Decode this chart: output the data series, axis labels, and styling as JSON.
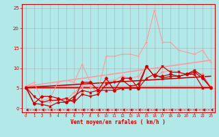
{
  "bg_color": "#b3e8e8",
  "grid_color": "#999999",
  "xlabel": "Vent moyen/en rafales ( km/h )",
  "xlabel_color": "#cc0000",
  "tick_color": "#cc0000",
  "xlim": [
    -0.5,
    23.5
  ],
  "ylim": [
    -1,
    26
  ],
  "yticks": [
    0,
    5,
    10,
    15,
    20,
    25
  ],
  "xticks": [
    0,
    1,
    2,
    3,
    4,
    5,
    6,
    7,
    8,
    9,
    10,
    11,
    12,
    13,
    14,
    15,
    16,
    17,
    18,
    19,
    20,
    21,
    22,
    23
  ],
  "lines": [
    {
      "comment": "light pink + line (upper envelope)",
      "x": [
        0,
        1,
        2,
        3,
        4,
        5,
        6,
        7,
        8,
        9,
        10,
        11,
        12,
        13,
        14,
        15,
        16,
        17,
        18,
        19,
        20,
        21,
        22,
        23
      ],
      "y": [
        5.5,
        6.5,
        2.0,
        2.5,
        6.5,
        7.0,
        6.5,
        11.0,
        6.5,
        4.5,
        13.0,
        13.0,
        13.5,
        13.5,
        13.0,
        16.5,
        24.5,
        16.5,
        16.5,
        14.5,
        14.0,
        13.5,
        14.5,
        11.5
      ],
      "color": "#ff9999",
      "marker": "+",
      "markersize": 3.5,
      "linewidth": 0.8,
      "linestyle": "-",
      "zorder": 3
    },
    {
      "comment": "light pink line (lower scatter)",
      "x": [
        0,
        1,
        2,
        3,
        4,
        5,
        6,
        7,
        8,
        9,
        10,
        11,
        12,
        13,
        14,
        15,
        16,
        17,
        18,
        19,
        20,
        21,
        22,
        23
      ],
      "y": [
        5.5,
        3.0,
        1.5,
        1.5,
        2.5,
        2.0,
        4.0,
        5.5,
        5.5,
        4.0,
        7.0,
        7.0,
        8.0,
        7.5,
        8.0,
        10.5,
        8.0,
        9.0,
        9.5,
        9.0,
        8.5,
        9.0,
        8.5,
        5.5
      ],
      "color": "#ff9999",
      "marker": "D",
      "markersize": 2.0,
      "linewidth": 0.8,
      "linestyle": "-",
      "zorder": 3
    },
    {
      "comment": "light pink diagonal line upper",
      "x": [
        0,
        23
      ],
      "y": [
        5.5,
        12.0
      ],
      "color": "#ff9999",
      "marker": null,
      "markersize": 0,
      "linewidth": 1.2,
      "linestyle": "-",
      "zorder": 2
    },
    {
      "comment": "light pink diagonal line lower flat",
      "x": [
        0,
        23
      ],
      "y": [
        5.5,
        5.5
      ],
      "color": "#ff9999",
      "marker": null,
      "markersize": 0,
      "linewidth": 1.2,
      "linestyle": "-",
      "zorder": 2
    },
    {
      "comment": "dark red upper scatter line",
      "x": [
        0,
        1,
        2,
        3,
        4,
        5,
        6,
        7,
        8,
        9,
        10,
        11,
        12,
        13,
        14,
        15,
        16,
        17,
        18,
        19,
        20,
        21,
        22,
        23
      ],
      "y": [
        5.2,
        1.2,
        3.0,
        3.0,
        2.5,
        1.5,
        2.2,
        6.5,
        6.5,
        4.5,
        7.5,
        4.5,
        7.5,
        7.5,
        5.0,
        10.5,
        8.0,
        8.0,
        8.5,
        8.0,
        8.5,
        9.0,
        7.5,
        5.2
      ],
      "color": "#cc0000",
      "marker": "D",
      "markersize": 2.5,
      "linewidth": 0.9,
      "linestyle": "-",
      "zorder": 4
    },
    {
      "comment": "dark red lower scatter line",
      "x": [
        0,
        1,
        2,
        3,
        4,
        5,
        6,
        7,
        8,
        9,
        10,
        11,
        12,
        13,
        14,
        15,
        16,
        17,
        18,
        19,
        20,
        21,
        22,
        23
      ],
      "y": [
        5.2,
        1.2,
        1.0,
        0.5,
        1.5,
        1.5,
        3.0,
        4.5,
        4.0,
        4.5,
        4.5,
        4.5,
        5.0,
        5.0,
        5.0,
        7.5,
        8.5,
        7.5,
        8.0,
        8.0,
        8.5,
        8.5,
        5.2,
        5.2
      ],
      "color": "#cc0000",
      "marker": "^",
      "markersize": 2.5,
      "linewidth": 0.9,
      "linestyle": "-",
      "zorder": 4
    },
    {
      "comment": "dark red scatter line 3",
      "x": [
        0,
        1,
        2,
        3,
        4,
        5,
        6,
        7,
        8,
        9,
        10,
        11,
        12,
        13,
        14,
        15,
        16,
        17,
        18,
        19,
        20,
        21,
        22,
        23
      ],
      "y": [
        5.2,
        3.0,
        1.5,
        2.0,
        2.0,
        2.5,
        1.5,
        3.5,
        3.0,
        3.5,
        6.0,
        6.5,
        7.0,
        5.5,
        6.0,
        10.5,
        8.0,
        10.5,
        9.0,
        9.0,
        8.5,
        9.5,
        8.0,
        5.2
      ],
      "color": "#cc0000",
      "marker": "v",
      "markersize": 2.5,
      "linewidth": 0.9,
      "linestyle": "-",
      "zorder": 4
    },
    {
      "comment": "dark red diagonal line upper",
      "x": [
        0,
        23
      ],
      "y": [
        5.2,
        8.0
      ],
      "color": "#cc0000",
      "marker": null,
      "markersize": 0,
      "linewidth": 1.2,
      "linestyle": "-",
      "zorder": 2
    },
    {
      "comment": "dark red flat line",
      "x": [
        0,
        23
      ],
      "y": [
        5.2,
        5.2
      ],
      "color": "#cc0000",
      "marker": null,
      "markersize": 0,
      "linewidth": 1.2,
      "linestyle": "-",
      "zorder": 2
    },
    {
      "comment": "bottom dashed arrow line",
      "x": [
        0,
        1,
        2,
        3,
        4,
        5,
        6,
        7,
        8,
        9,
        10,
        11,
        12,
        13,
        14,
        15,
        16,
        17,
        18,
        19,
        20,
        21,
        22,
        23
      ],
      "y": [
        -0.3,
        -0.3,
        -0.3,
        -0.3,
        -0.3,
        -0.3,
        -0.3,
        -0.3,
        -0.3,
        -0.3,
        -0.3,
        -0.3,
        -0.3,
        -0.3,
        -0.3,
        -0.3,
        -0.3,
        -0.3,
        -0.3,
        -0.3,
        -0.3,
        -0.3,
        -0.3,
        -0.3
      ],
      "color": "#cc0000",
      "marker": 4,
      "markersize": 3,
      "linewidth": 0.6,
      "linestyle": "--",
      "zorder": 1
    }
  ]
}
